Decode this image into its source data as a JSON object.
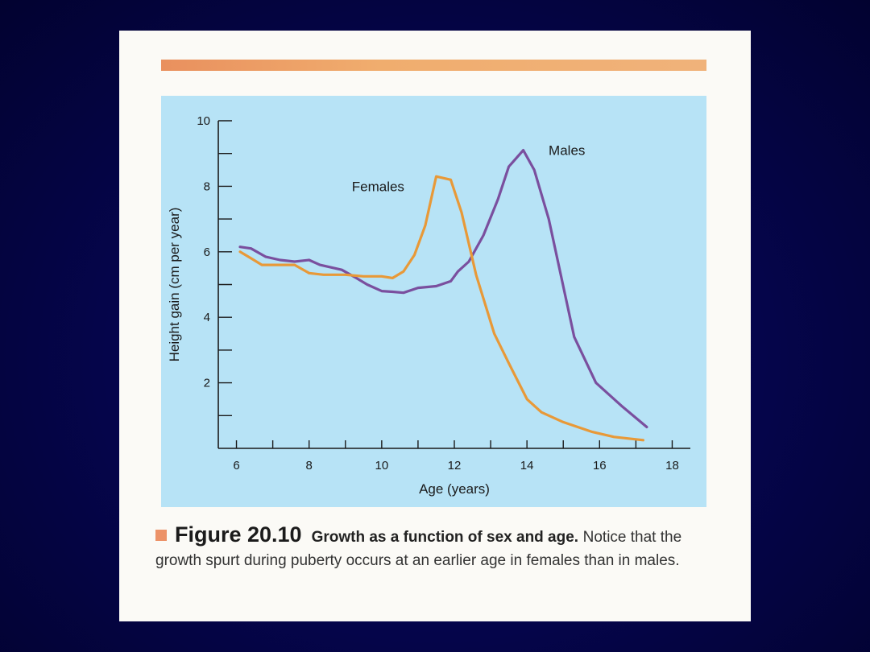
{
  "figure": {
    "number_label": "Figure 20.10",
    "title": "Growth as a function of sex and age.",
    "caption": "Notice that the growth spurt during puberty occurs at an earlier age in females than in males.",
    "colors": {
      "band": "#f0a870",
      "plot_bg": "#b7e3f6",
      "square": "#ec9268"
    }
  },
  "chart_data": {
    "type": "line",
    "xlabel": "Age (years)",
    "ylabel": "Height gain (cm per year)",
    "xlim": [
      5.5,
      18.5
    ],
    "ylim": [
      0,
      10
    ],
    "x_ticks": [
      6,
      8,
      10,
      12,
      14,
      16,
      18
    ],
    "y_ticks": [
      2,
      4,
      6,
      8,
      10
    ],
    "grid": false,
    "legend": "inline labels near peaks",
    "series": [
      {
        "name": "Males",
        "color": "#7a4f9e",
        "x": [
          6.1,
          6.4,
          6.8,
          7.2,
          7.6,
          8.0,
          8.3,
          8.9,
          9.3,
          9.6,
          10.0,
          10.3,
          10.6,
          11.0,
          11.5,
          11.9,
          12.1,
          12.4,
          12.8,
          13.2,
          13.5,
          13.9,
          14.2,
          14.6,
          15.3,
          15.9,
          16.6,
          17.3
        ],
        "y": [
          6.15,
          6.1,
          5.85,
          5.75,
          5.7,
          5.75,
          5.6,
          5.45,
          5.2,
          5.0,
          4.8,
          4.78,
          4.75,
          4.9,
          4.95,
          5.1,
          5.4,
          5.7,
          6.5,
          7.6,
          8.6,
          9.1,
          8.5,
          7.0,
          3.4,
          2.0,
          1.3,
          0.65
        ]
      },
      {
        "name": "Females",
        "color": "#e89938",
        "x": [
          6.1,
          6.4,
          6.7,
          7.2,
          7.6,
          8.0,
          8.4,
          9.0,
          9.5,
          10.0,
          10.3,
          10.6,
          10.9,
          11.2,
          11.5,
          11.9,
          12.2,
          12.6,
          13.1,
          13.5,
          14.0,
          14.4,
          15.0,
          15.8,
          16.4,
          17.2
        ],
        "y": [
          6.0,
          5.8,
          5.6,
          5.6,
          5.6,
          5.35,
          5.3,
          5.3,
          5.25,
          5.25,
          5.2,
          5.4,
          5.9,
          6.8,
          8.3,
          8.2,
          7.2,
          5.3,
          3.5,
          2.6,
          1.5,
          1.1,
          0.8,
          0.5,
          0.35,
          0.25
        ]
      }
    ]
  }
}
